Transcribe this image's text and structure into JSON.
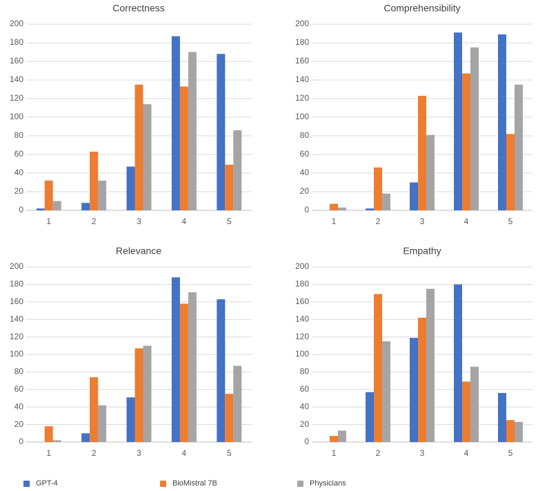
{
  "chart_data": [
    {
      "type": "bar",
      "title": "Correctness",
      "categories": [
        "1",
        "2",
        "3",
        "4",
        "5"
      ],
      "yticks": [
        "0",
        "20",
        "40",
        "60",
        "80",
        "100",
        "120",
        "140",
        "160",
        "180",
        "200"
      ],
      "ylim": [
        0,
        200
      ],
      "series": [
        {
          "name": "GPT-4",
          "values": [
            2,
            8,
            47,
            187,
            168
          ]
        },
        {
          "name": "BioMistral 7B",
          "values": [
            32,
            63,
            135,
            133,
            49
          ]
        },
        {
          "name": "Physicians",
          "values": [
            10,
            32,
            114,
            170,
            86
          ]
        }
      ]
    },
    {
      "type": "bar",
      "title": "Comprehensibility",
      "categories": [
        "1",
        "2",
        "3",
        "4",
        "5"
      ],
      "yticks": [
        "0",
        "20",
        "40",
        "60",
        "80",
        "100",
        "120",
        "140",
        "160",
        "180",
        "200"
      ],
      "ylim": [
        0,
        200
      ],
      "series": [
        {
          "name": "GPT-4",
          "values": [
            0,
            2,
            30,
            191,
            189
          ]
        },
        {
          "name": "BioMistral 7B",
          "values": [
            7,
            46,
            123,
            147,
            82
          ]
        },
        {
          "name": "Physicians",
          "values": [
            3,
            18,
            81,
            175,
            135
          ]
        }
      ]
    },
    {
      "type": "bar",
      "title": "Relevance",
      "categories": [
        "1",
        "2",
        "3",
        "4",
        "5"
      ],
      "yticks": [
        "0",
        "20",
        "40",
        "60",
        "80",
        "100",
        "120",
        "140",
        "160",
        "180",
        "200"
      ],
      "ylim": [
        0,
        200
      ],
      "series": [
        {
          "name": "GPT-4",
          "values": [
            0,
            10,
            51,
            188,
            163
          ]
        },
        {
          "name": "BioMistral 7B",
          "values": [
            18,
            74,
            107,
            158,
            55
          ]
        },
        {
          "name": "Physicians",
          "values": [
            2,
            42,
            110,
            171,
            87
          ]
        }
      ]
    },
    {
      "type": "bar",
      "title": "Empathy",
      "categories": [
        "1",
        "2",
        "3",
        "4",
        "5"
      ],
      "yticks": [
        "0",
        "20",
        "40",
        "60",
        "80",
        "100",
        "120",
        "140",
        "160",
        "180",
        "200"
      ],
      "ylim": [
        0,
        200
      ],
      "series": [
        {
          "name": "GPT-4",
          "values": [
            0,
            57,
            119,
            180,
            56
          ]
        },
        {
          "name": "BioMistral 7B",
          "values": [
            7,
            169,
            142,
            69,
            25
          ]
        },
        {
          "name": "Physicians",
          "values": [
            13,
            115,
            175,
            86,
            23
          ]
        }
      ]
    }
  ],
  "legend": {
    "items": [
      {
        "label": "GPT-4",
        "color": "#4472C4"
      },
      {
        "label": "BioMistral 7B",
        "color": "#ED7D31"
      },
      {
        "label": "Physicians",
        "color": "#A5A5A5"
      }
    ]
  },
  "style": {
    "gridline_color": "#D9D9D9",
    "axis_color": "#BFBFBF"
  }
}
